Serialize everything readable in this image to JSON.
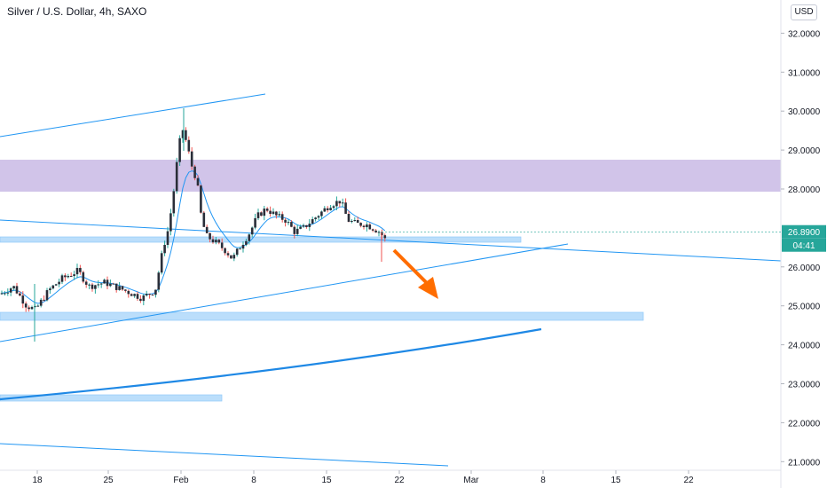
{
  "header": {
    "symbol_title": "Silver / U.S. Dollar, 4h, SAXO",
    "currency_button": "USD"
  },
  "chart_data": {
    "type": "candlestick",
    "title": "Silver / U.S. Dollar, 4h, SAXO",
    "currency": "USD",
    "y_ticks": [
      "32.0000",
      "31.0000",
      "30.0000",
      "29.0000",
      "28.0000",
      "26.0000",
      "25.0000",
      "24.0000",
      "23.0000",
      "22.0000",
      "21.0000"
    ],
    "y_tick_values": [
      32,
      31,
      30,
      29,
      28,
      26,
      25,
      24,
      23,
      22,
      21
    ],
    "x_ticks": [
      "18",
      "25",
      "Feb",
      "8",
      "15",
      "22",
      "Mar",
      "8",
      "15",
      "22"
    ],
    "ylim": [
      20.7,
      32.8
    ],
    "current_price": 26.89,
    "current_price_label": "26.8900",
    "countdown_label": "04:41",
    "colors": {
      "up": "#26a69a",
      "down": "#ef5350",
      "candle_body": "#2a2e39",
      "trendline": "#2196f3",
      "resistance_zone": "#d1c4e9",
      "support_zone": "#bbdefb",
      "arrow": "#ff6d00",
      "price_label_bg": "#26a69a",
      "countdown_bg": "#26a69a"
    },
    "zones": [
      {
        "type": "resistance",
        "from": 27.9,
        "to": 28.75
      },
      {
        "type": "support",
        "from": 26.6,
        "to": 26.75
      },
      {
        "type": "support",
        "from": 24.6,
        "to": 24.8
      },
      {
        "type": "support",
        "from": 22.45,
        "to": 22.6
      }
    ],
    "annotation": {
      "type": "arrow",
      "direction": "down",
      "from_price": 26.6,
      "to_price": 25.1
    }
  }
}
